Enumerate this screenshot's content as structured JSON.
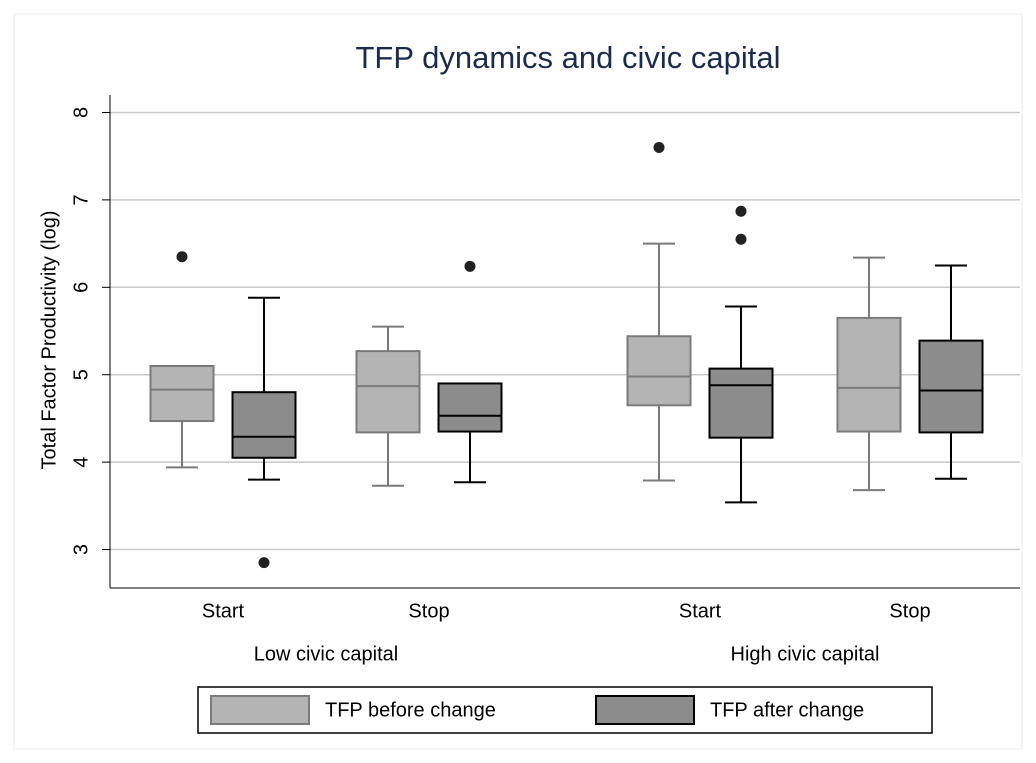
{
  "chart_data": {
    "type": "box",
    "title": "TFP dynamics and civic capital",
    "ylabel": "Total Factor Productivity (log)",
    "groups": [
      {
        "name": "Low civic capital",
        "categories": [
          "Start",
          "Stop"
        ]
      },
      {
        "name": "High civic capital",
        "categories": [
          "Start",
          "Stop"
        ]
      }
    ],
    "series": [
      {
        "name": "TFP before change",
        "color": "#b4b4b4",
        "edge": "#7a7a7a",
        "boxes": [
          {
            "low": 3.94,
            "q1": 4.47,
            "median": 4.83,
            "q3": 5.1,
            "high": 5.1,
            "outliers": [
              6.35
            ]
          },
          {
            "low": 3.73,
            "q1": 4.34,
            "median": 4.87,
            "q3": 5.27,
            "high": 5.55,
            "outliers": []
          },
          {
            "low": 3.79,
            "q1": 4.65,
            "median": 4.98,
            "q3": 5.44,
            "high": 6.5,
            "outliers": [
              7.6
            ]
          },
          {
            "low": 3.68,
            "q1": 4.35,
            "median": 4.85,
            "q3": 5.65,
            "high": 6.34,
            "outliers": []
          }
        ]
      },
      {
        "name": "TFP after change",
        "color": "#8c8c8c",
        "edge": "#000000",
        "boxes": [
          {
            "low": 3.8,
            "q1": 4.05,
            "median": 4.29,
            "q3": 4.8,
            "high": 5.88,
            "outliers": [
              2.85
            ]
          },
          {
            "low": 3.77,
            "q1": 4.35,
            "median": 4.53,
            "q3": 4.9,
            "high": 4.9,
            "outliers": [
              6.24
            ]
          },
          {
            "low": 3.54,
            "q1": 4.28,
            "median": 4.88,
            "q3": 5.07,
            "high": 5.78,
            "outliers": [
              6.87,
              6.55
            ]
          },
          {
            "low": 3.81,
            "q1": 4.34,
            "median": 4.82,
            "q3": 5.39,
            "high": 6.25,
            "outliers": []
          }
        ]
      }
    ],
    "ylim": [
      2.56,
      8.2
    ],
    "yticks": [
      3,
      4,
      5,
      6,
      7,
      8
    ],
    "grid": true,
    "legend": "bottom"
  }
}
